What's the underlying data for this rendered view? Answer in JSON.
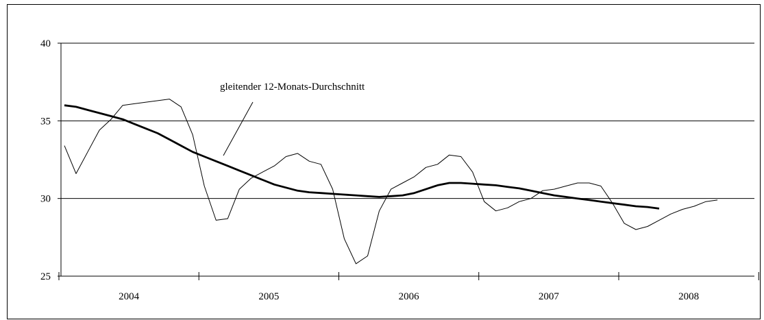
{
  "chart_data": {
    "type": "line",
    "title": "",
    "xlabel": "",
    "ylabel": "",
    "ylim": [
      25,
      40
    ],
    "yticks": [
      25,
      30,
      35,
      40
    ],
    "year_labels": [
      "2004",
      "2005",
      "2006",
      "2007",
      "2008"
    ],
    "grid": "horizontal",
    "annotation": "gleitender 12-Monats-Durchschnitt",
    "series": [
      {
        "style": "thin",
        "values": [
          33.4,
          31.6,
          33.0,
          34.4,
          35.1,
          36.0,
          36.1,
          36.2,
          36.3,
          36.4,
          35.9,
          34.1,
          30.8,
          28.6,
          28.7,
          30.6,
          31.3,
          31.7,
          32.1,
          32.7,
          32.9,
          32.4,
          32.2,
          30.6,
          27.4,
          25.8,
          26.3,
          29.2,
          30.6,
          31.0,
          31.4,
          32.0,
          32.2,
          32.8,
          32.7,
          31.7,
          29.8,
          29.2,
          29.4,
          29.8,
          30.0,
          30.5,
          30.6,
          30.8,
          31.0,
          31.0,
          30.8,
          29.7,
          28.4,
          28.0,
          28.2,
          28.6,
          29.0,
          29.3,
          29.5,
          29.8,
          29.9
        ]
      },
      {
        "style": "thick",
        "values": [
          36.0,
          35.9,
          35.7,
          35.5,
          35.3,
          35.1,
          34.8,
          34.5,
          34.2,
          33.8,
          33.4,
          33.0,
          32.7,
          32.4,
          32.1,
          31.8,
          31.5,
          31.2,
          30.9,
          30.7,
          30.5,
          30.4,
          30.35,
          30.3,
          30.25,
          30.2,
          30.15,
          30.1,
          30.15,
          30.2,
          30.35,
          30.6,
          30.85,
          31.0,
          31.0,
          30.95,
          30.9,
          30.85,
          30.75,
          30.65,
          30.5,
          30.35,
          30.2,
          30.1,
          30.0,
          29.9,
          29.8,
          29.7,
          29.6,
          29.5,
          29.45,
          29.35
        ]
      }
    ]
  }
}
